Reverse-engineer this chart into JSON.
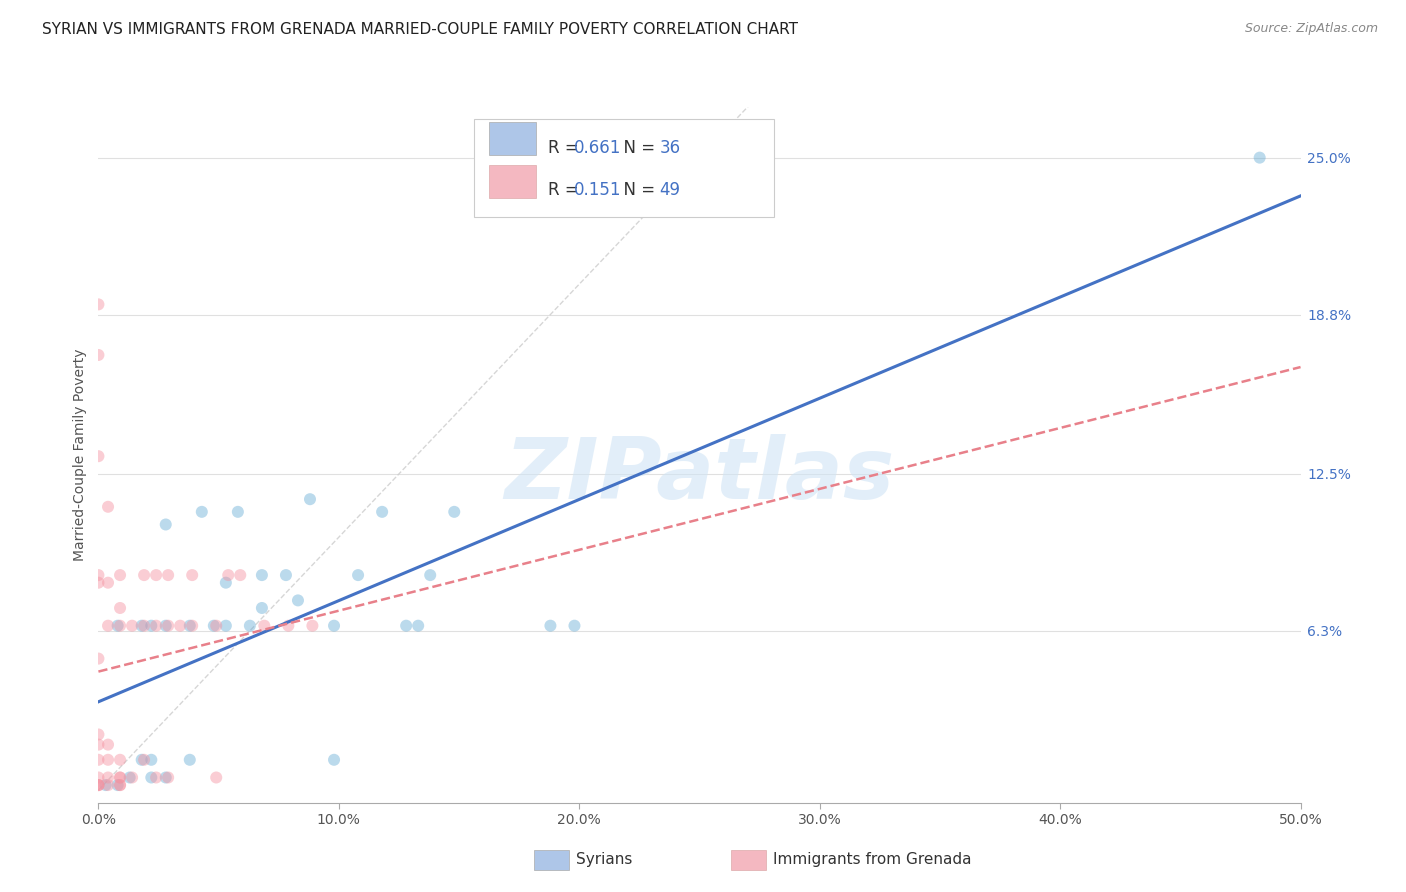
{
  "title": "SYRIAN VS IMMIGRANTS FROM GRENADA MARRIED-COUPLE FAMILY POVERTY CORRELATION CHART",
  "source": "Source: ZipAtlas.com",
  "ylabel": "Married-Couple Family Poverty",
  "watermark": "ZIPatlas",
  "xlim": [
    0.0,
    0.5
  ],
  "ylim": [
    -0.005,
    0.27
  ],
  "xtick_labels": [
    "0.0%",
    "10.0%",
    "20.0%",
    "30.0%",
    "40.0%",
    "50.0%"
  ],
  "xtick_values": [
    0.0,
    0.1,
    0.2,
    0.3,
    0.4,
    0.5
  ],
  "ytick_labels": [
    "25.0%",
    "18.8%",
    "12.5%",
    "6.3%"
  ],
  "ytick_values": [
    0.25,
    0.188,
    0.125,
    0.063
  ],
  "legend_color1": "#aec6e8",
  "legend_color2": "#f4b8c1",
  "syrians_color": "#6aaed6",
  "grenada_color": "#f492a0",
  "line1_color": "#4472c4",
  "line2_color": "#e8808a",
  "diagonal_color": "#cccccc",
  "syrians_x": [
    0.003,
    0.008,
    0.008,
    0.013,
    0.018,
    0.018,
    0.022,
    0.022,
    0.022,
    0.028,
    0.028,
    0.028,
    0.038,
    0.038,
    0.043,
    0.048,
    0.053,
    0.053,
    0.058,
    0.063,
    0.068,
    0.068,
    0.078,
    0.083,
    0.088,
    0.098,
    0.098,
    0.108,
    0.118,
    0.128,
    0.133,
    0.138,
    0.148,
    0.188,
    0.198,
    0.483
  ],
  "syrians_y": [
    0.002,
    0.002,
    0.065,
    0.005,
    0.012,
    0.065,
    0.005,
    0.012,
    0.065,
    0.005,
    0.065,
    0.105,
    0.012,
    0.065,
    0.11,
    0.065,
    0.065,
    0.082,
    0.11,
    0.065,
    0.072,
    0.085,
    0.085,
    0.075,
    0.115,
    0.012,
    0.065,
    0.085,
    0.11,
    0.065,
    0.065,
    0.085,
    0.11,
    0.065,
    0.065,
    0.25
  ],
  "grenada_x": [
    0.0,
    0.0,
    0.0,
    0.0,
    0.0,
    0.0,
    0.0,
    0.0,
    0.0,
    0.0,
    0.0,
    0.0,
    0.0,
    0.004,
    0.004,
    0.004,
    0.004,
    0.004,
    0.004,
    0.004,
    0.009,
    0.009,
    0.009,
    0.009,
    0.009,
    0.009,
    0.009,
    0.009,
    0.014,
    0.014,
    0.019,
    0.019,
    0.019,
    0.024,
    0.024,
    0.024,
    0.029,
    0.029,
    0.029,
    0.034,
    0.039,
    0.039,
    0.049,
    0.049,
    0.054,
    0.059,
    0.069,
    0.079,
    0.089
  ],
  "grenada_y": [
    0.002,
    0.002,
    0.002,
    0.005,
    0.012,
    0.018,
    0.022,
    0.052,
    0.082,
    0.085,
    0.132,
    0.172,
    0.192,
    0.002,
    0.005,
    0.012,
    0.018,
    0.065,
    0.082,
    0.112,
    0.002,
    0.002,
    0.005,
    0.005,
    0.012,
    0.065,
    0.072,
    0.085,
    0.005,
    0.065,
    0.012,
    0.065,
    0.085,
    0.005,
    0.065,
    0.085,
    0.005,
    0.065,
    0.085,
    0.065,
    0.065,
    0.085,
    0.005,
    0.065,
    0.085,
    0.085,
    0.065,
    0.065,
    0.065
  ],
  "background_color": "#ffffff",
  "grid_color": "#e0e0e0",
  "title_fontsize": 11,
  "axis_label_fontsize": 10,
  "tick_fontsize": 10,
  "marker_size": 75,
  "marker_alpha": 0.45,
  "legend_fontsize": 12
}
